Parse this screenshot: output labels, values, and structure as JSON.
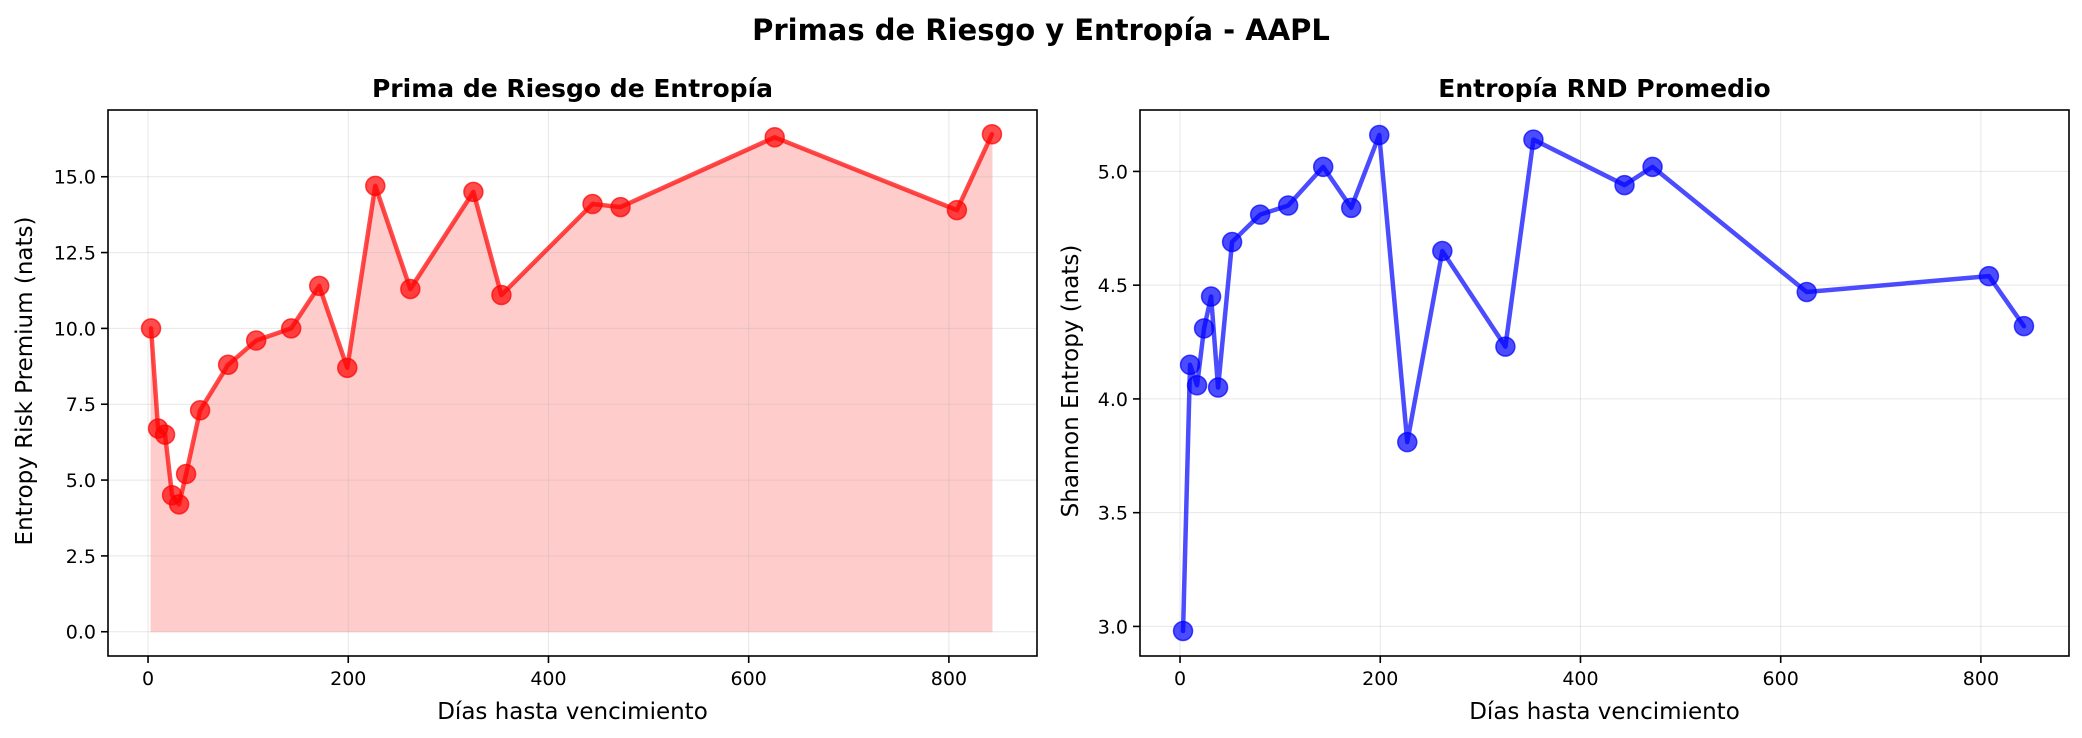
{
  "figure": {
    "suptitle": "Primas de Riesgo y Entropía - AAPL"
  },
  "chart_data": [
    {
      "type": "line",
      "title": "Prima de Riesgo de Entropía",
      "xlabel": "Días hasta vencimiento",
      "ylabel": "Entropy Risk Premium (nats)",
      "xlim": [
        -40,
        888
      ],
      "ylim": [
        -0.8,
        17.2
      ],
      "xticks": [
        0,
        200,
        400,
        600,
        800
      ],
      "xtick_labels": [
        "0",
        "200",
        "400",
        "600",
        "800"
      ],
      "yticks": [
        0,
        2.5,
        5,
        7.5,
        10,
        12.5,
        15
      ],
      "ytick_labels": [
        "0.0",
        "2.5",
        "5.0",
        "7.5",
        "10.0",
        "12.5",
        "15.0"
      ],
      "grid": true,
      "fill_under": true,
      "color": "#ff0000",
      "fill_color": "#ffcccc",
      "series": [
        {
          "x": [
            3,
            10,
            17,
            24,
            31,
            38,
            52,
            80,
            108,
            143,
            171,
            199,
            227,
            262,
            325,
            353,
            444,
            472,
            626,
            808,
            843
          ],
          "values": [
            10.0,
            6.7,
            6.5,
            4.5,
            4.2,
            5.2,
            7.3,
            8.8,
            9.6,
            10.0,
            11.4,
            8.7,
            14.7,
            11.3,
            14.5,
            11.1,
            14.1,
            14.0,
            16.3,
            13.9,
            16.4
          ]
        }
      ]
    },
    {
      "type": "line",
      "title": "Entropía RND Promedio",
      "xlabel": "Días hasta vencimiento",
      "ylabel": "Shannon Entropy (nats)",
      "xlim": [
        -40,
        888
      ],
      "ylim": [
        2.87,
        5.27
      ],
      "xticks": [
        0,
        200,
        400,
        600,
        800
      ],
      "xtick_labels": [
        "0",
        "200",
        "400",
        "600",
        "800"
      ],
      "yticks": [
        3.0,
        3.5,
        4.0,
        4.5,
        5.0
      ],
      "ytick_labels": [
        "3.0",
        "3.5",
        "4.0",
        "4.5",
        "5.0"
      ],
      "grid": true,
      "fill_under": false,
      "color": "#0000ff",
      "series": [
        {
          "x": [
            3,
            10,
            17,
            24,
            31,
            38,
            52,
            80,
            108,
            143,
            171,
            199,
            227,
            262,
            325,
            353,
            444,
            472,
            626,
            808,
            843
          ],
          "values": [
            2.98,
            4.15,
            4.06,
            4.31,
            4.45,
            4.05,
            4.69,
            4.81,
            4.85,
            5.02,
            4.84,
            5.16,
            3.81,
            4.65,
            4.23,
            5.14,
            4.94,
            5.02,
            4.47,
            4.54,
            4.32
          ]
        }
      ]
    }
  ]
}
